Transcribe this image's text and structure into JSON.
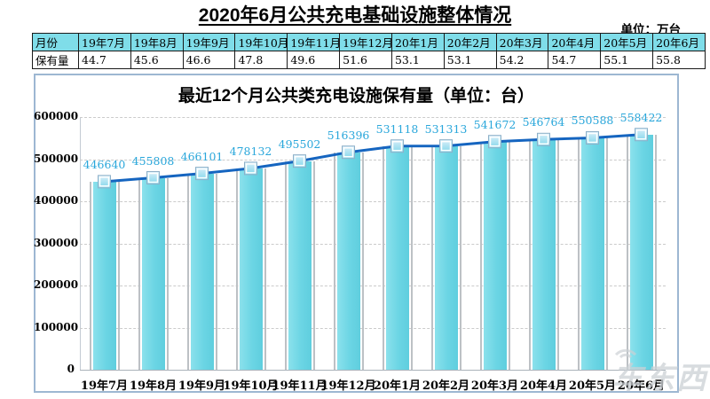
{
  "page": {
    "title": "2020年6月公共充电基础设施整体情况",
    "unit_label": "单位：万台",
    "watermark": "车东西"
  },
  "table": {
    "row_headers": {
      "month": "月份",
      "value": "保有量"
    },
    "months": [
      "19年7月",
      "19年8月",
      "19年9月",
      "19年10月",
      "19年11月",
      "19年12月",
      "20年1月",
      "20年2月",
      "20年3月",
      "20年4月",
      "20年5月",
      "20年6月"
    ],
    "values": [
      "44.7",
      "45.6",
      "46.6",
      "47.8",
      "49.6",
      "51.6",
      "53.1",
      "53.1",
      "54.2",
      "54.7",
      "55.1",
      "55.8"
    ]
  },
  "chart_data": {
    "type": "bar",
    "overlay": "line",
    "title": "最近12个月公共类充电设施保有量（单位：台）",
    "categories": [
      "19年7月",
      "19年8月",
      "19年9月",
      "19年10月",
      "19年11月",
      "19年12月",
      "20年1月",
      "20年2月",
      "20年3月",
      "20年4月",
      "20年5月",
      "20年6月"
    ],
    "values": [
      446640,
      455808,
      466101,
      478132,
      495502,
      516396,
      531118,
      531313,
      541672,
      546764,
      550588,
      558422
    ],
    "data_labels_shown": true,
    "ylim": [
      0,
      600000
    ],
    "yticks": [
      0,
      100000,
      200000,
      300000,
      400000,
      500000,
      600000
    ],
    "grid": "horizontal-dashed",
    "legend": "none",
    "colors": {
      "bar_fill": "#6FD7E5",
      "bar_side_shadow": "#BDC1C5",
      "line": "#1565C0",
      "marker_fill": "#A9DCF2",
      "marker_border": "#FFFFFF",
      "data_label": "#2AA7DB",
      "table_header_bg": "#7FDDE9",
      "chart_border": "#9DB7D2"
    }
  }
}
